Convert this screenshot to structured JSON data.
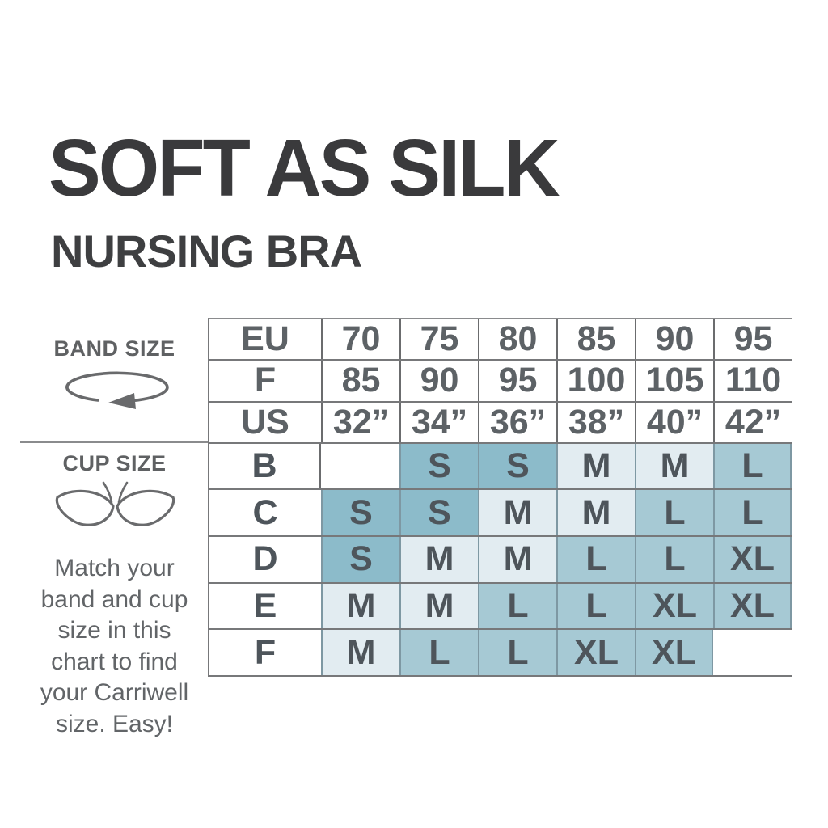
{
  "header": {
    "title": "SOFT AS SILK",
    "subtitle": "NURSING BRA"
  },
  "sidebar": {
    "band_label": "BAND SIZE",
    "band_icon": "measuring-tape-loop-icon",
    "cup_label": "CUP SIZE",
    "cup_icon": "bra-cups-icon",
    "instruction_lines": [
      "Match your",
      "band and cup",
      "size in this",
      "chart to find",
      "your Carriwell",
      "size. Easy!"
    ]
  },
  "size_table": {
    "band_rows": [
      {
        "header": "EU",
        "values": [
          "70",
          "75",
          "80",
          "85",
          "90",
          "95"
        ]
      },
      {
        "header": "F",
        "values": [
          "85",
          "90",
          "95",
          "100",
          "105",
          "110"
        ]
      },
      {
        "header": "US",
        "values": [
          "32”",
          "34”",
          "36”",
          "38”",
          "40”",
          "42”"
        ]
      }
    ],
    "cup_rows": [
      {
        "header": "B",
        "values": [
          "",
          "S",
          "S",
          "M",
          "M",
          "L"
        ]
      },
      {
        "header": "C",
        "values": [
          "S",
          "S",
          "M",
          "M",
          "L",
          "L"
        ]
      },
      {
        "header": "D",
        "values": [
          "S",
          "M",
          "M",
          "L",
          "L",
          "XL"
        ]
      },
      {
        "header": "E",
        "values": [
          "M",
          "M",
          "L",
          "L",
          "XL",
          "XL"
        ]
      },
      {
        "header": "F",
        "values": [
          "M",
          "L",
          "L",
          "XL",
          "XL",
          ""
        ]
      }
    ]
  },
  "colors": {
    "size_s": "#8cbbca",
    "size_m": "#e2ecf1",
    "size_l": "#a6c9d4",
    "size_xl": "#a6c9d4",
    "empty_cell": "#ffffff",
    "grid_line": "#77787a",
    "title_text": "#3a3a3c",
    "table_text": "#5c6165"
  },
  "chart_data": {
    "type": "table",
    "title": "SOFT AS SILK",
    "subtitle": "NURSING BRA",
    "band_size_rows": {
      "EU": [
        70,
        75,
        80,
        85,
        90,
        95
      ],
      "F": [
        85,
        90,
        95,
        100,
        105,
        110
      ],
      "US": [
        "32”",
        "34”",
        "36”",
        "38”",
        "40”",
        "42”"
      ]
    },
    "cup_size_rows": {
      "B": [
        "",
        "S",
        "S",
        "M",
        "M",
        "L"
      ],
      "C": [
        "S",
        "S",
        "M",
        "M",
        "L",
        "L"
      ],
      "D": [
        "S",
        "M",
        "M",
        "L",
        "L",
        "XL"
      ],
      "E": [
        "M",
        "M",
        "L",
        "L",
        "XL",
        "XL"
      ],
      "F": [
        "M",
        "L",
        "L",
        "XL",
        "XL",
        ""
      ]
    },
    "cell_shading": {
      "S": "#8cbbca",
      "M": "#e2ecf1",
      "L": "#a6c9d4",
      "XL": "#a6c9d4",
      "empty": "#ffffff"
    },
    "note": "Match your band and cup size in this chart to find your Carriwell size. Easy!"
  }
}
